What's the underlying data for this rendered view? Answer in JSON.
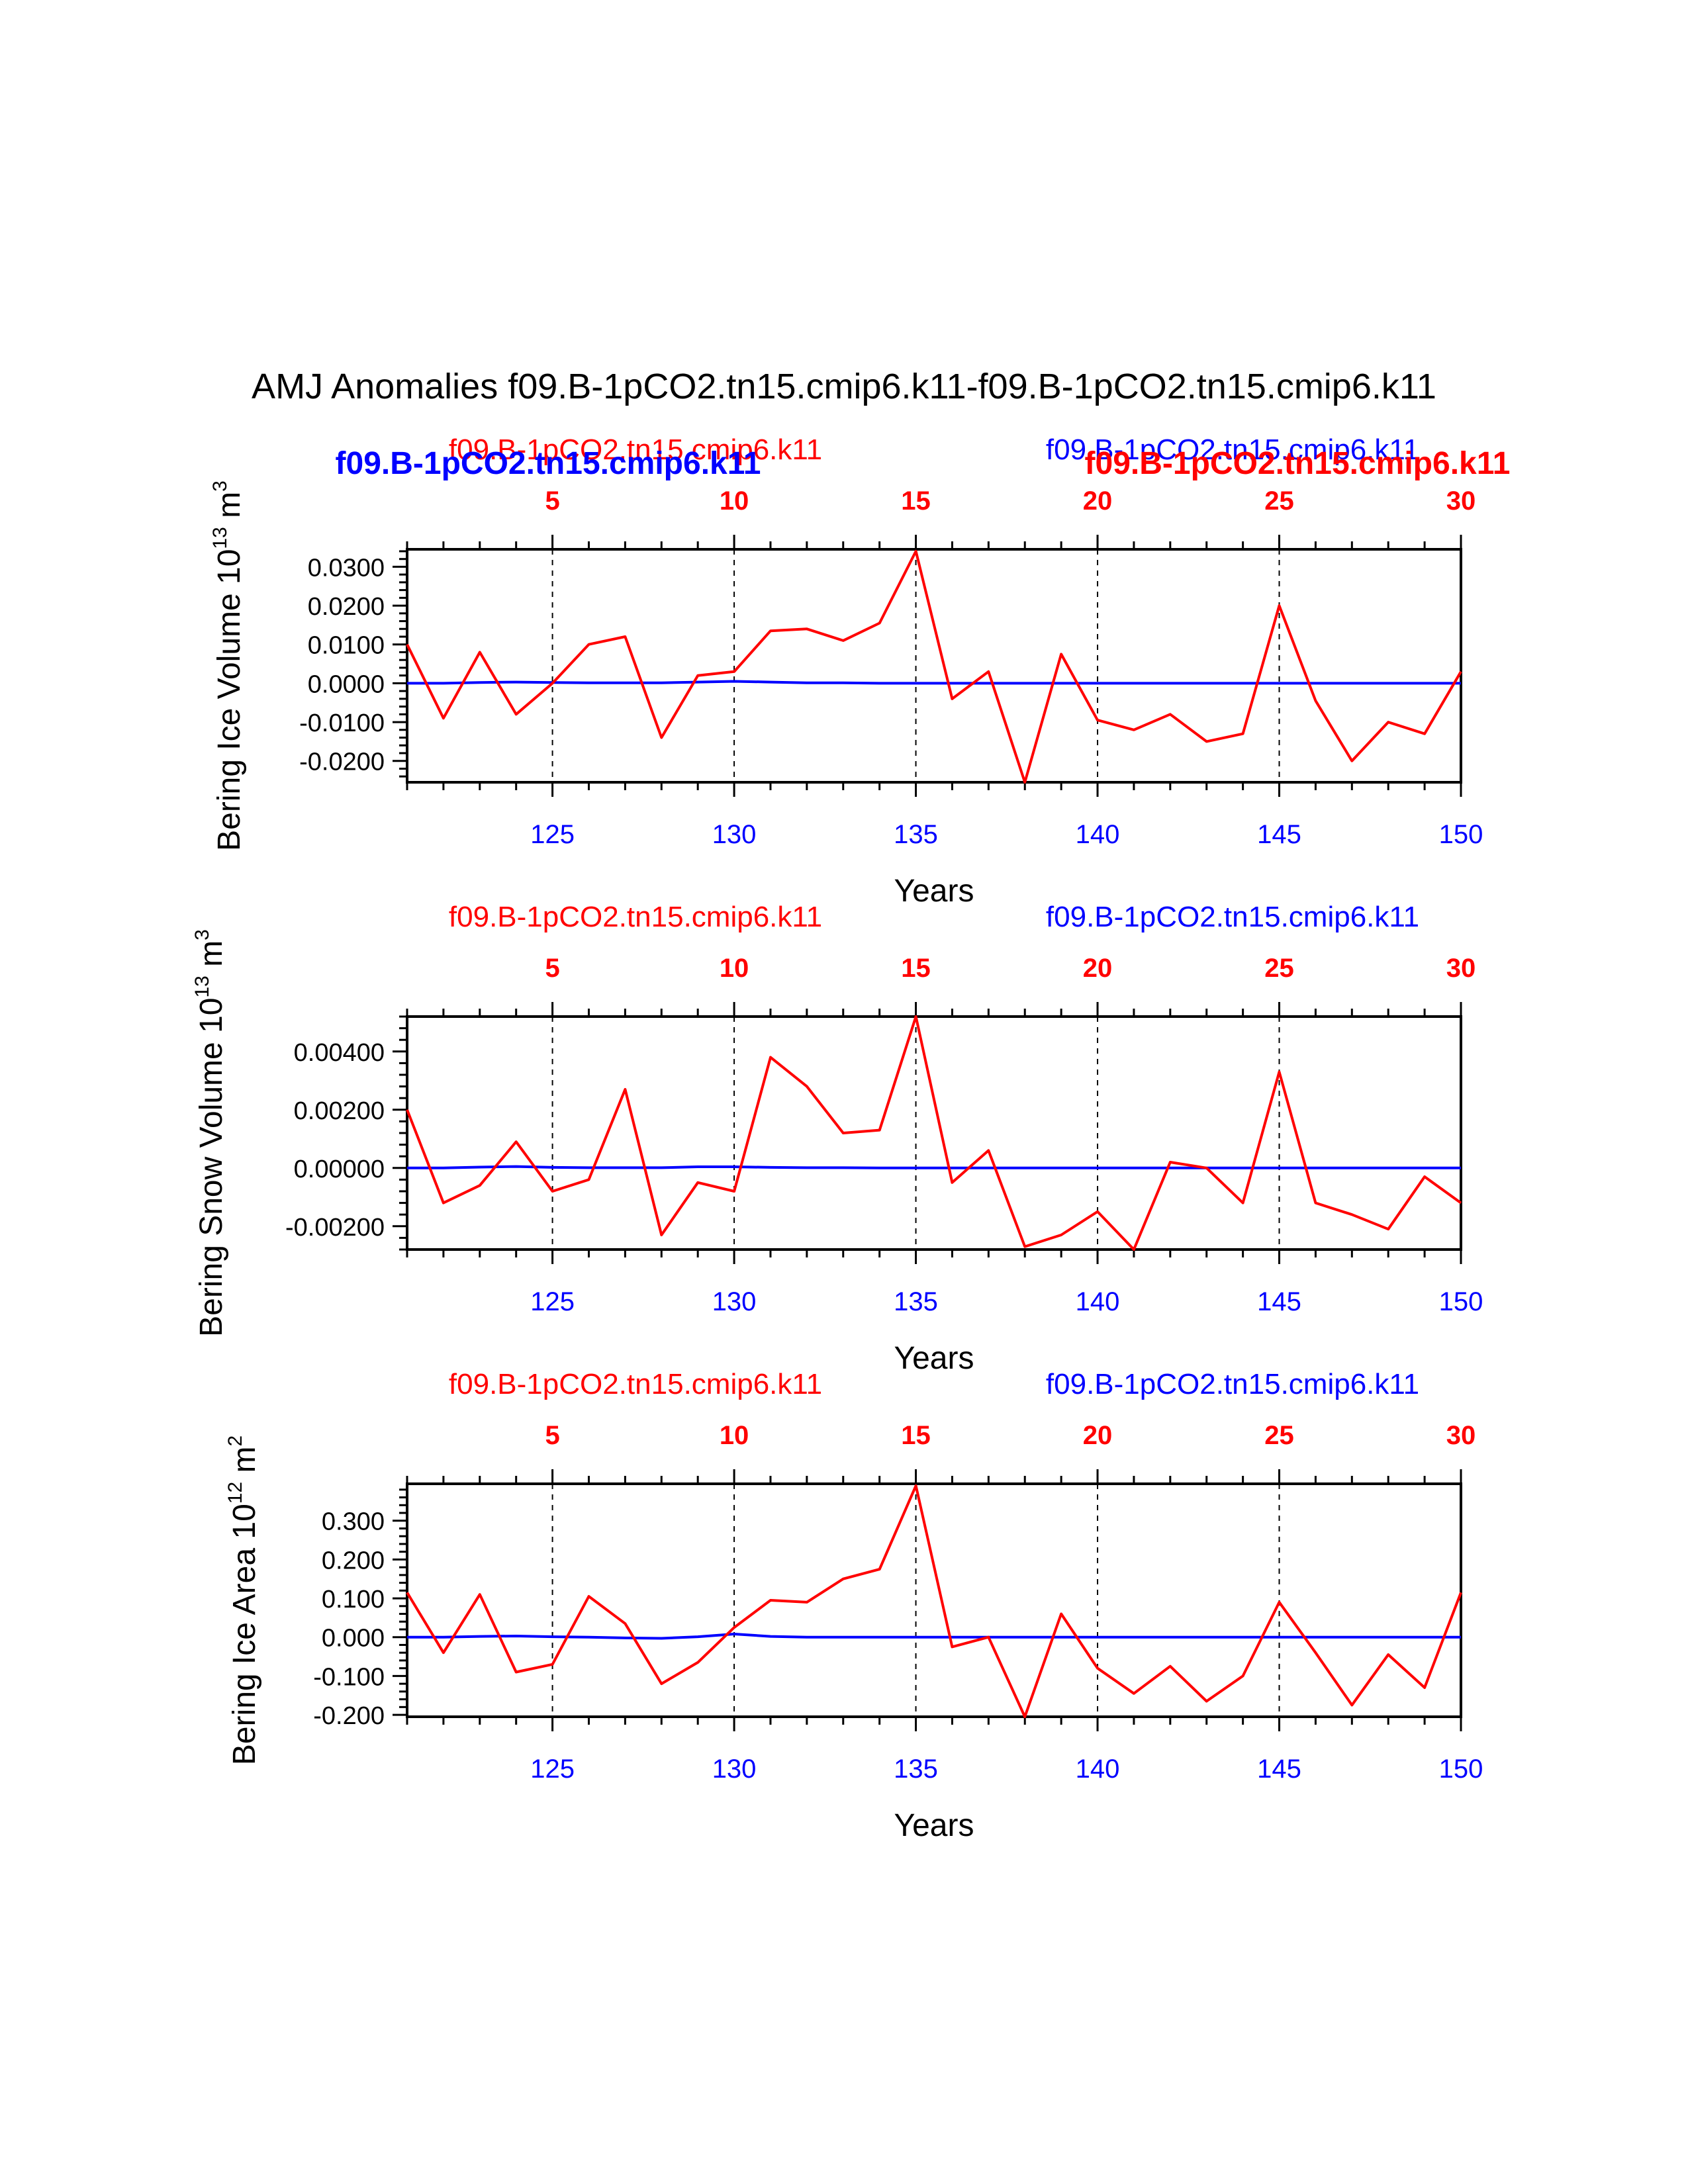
{
  "title": "AMJ Anomalies f09.B-1pCO2.tn15.cmip6.k11-f09.B-1pCO2.tn15.cmip6.k11",
  "colors": {
    "red": "#ff0000",
    "blue": "#0000ff",
    "axis": "#000000"
  },
  "chart_data": [
    {
      "type": "line",
      "ylabel": "Bering Ice Volume 10",
      "ylabel_exponent": "13",
      "ylabel_unit": " m",
      "ylabel_unit_exponent": "3",
      "xlabel": "Years",
      "legend": {
        "red_label": "f09.B-1pCO2.tn15.cmip6.k11",
        "blue_label": "f09.B-1pCO2.tn15.cmip6.k11",
        "blue_bold_label": "f09.B-1pCO2.tn15.cmip6.k11",
        "red_bold_label": "f09.B-1pCO2.tn15.cmip6.k11"
      },
      "xlim": [
        121,
        150
      ],
      "ylim": [
        -0.0255,
        0.0345
      ],
      "yticks": [
        -0.02,
        -0.01,
        0.0,
        0.01,
        0.02,
        0.03
      ],
      "ytick_labels": [
        "-0.0200",
        "-0.0100",
        "0.0000",
        "0.0100",
        "0.0200",
        "0.0300"
      ],
      "yminor_step": 0.002,
      "bottom_ticks": [
        125,
        130,
        135,
        140,
        145,
        150
      ],
      "bottom_tick_labels": [
        "125",
        "130",
        "135",
        "140",
        "145",
        "150"
      ],
      "top_tick_labels": [
        "5",
        "10",
        "15",
        "20",
        "25",
        "30"
      ],
      "grid": "dashed vertical every 5 years",
      "x": [
        121,
        122,
        123,
        124,
        125,
        126,
        127,
        128,
        129,
        130,
        131,
        132,
        133,
        134,
        135,
        136,
        137,
        138,
        139,
        140,
        141,
        142,
        143,
        144,
        145,
        146,
        147,
        148,
        149,
        150
      ],
      "series": [
        {
          "name": "f09.B-1pCO2.tn15.cmip6.k11",
          "color": "red",
          "values": [
            0.01,
            -0.009,
            0.008,
            -0.008,
            0.0,
            0.01,
            0.012,
            -0.014,
            0.002,
            0.003,
            0.0135,
            0.014,
            0.011,
            0.0155,
            0.034,
            -0.004,
            0.003,
            -0.0255,
            0.0075,
            -0.0095,
            -0.012,
            -0.008,
            -0.015,
            -0.013,
            0.02,
            -0.0045,
            -0.02,
            -0.01,
            -0.013,
            0.003
          ]
        },
        {
          "name": "f09.B-1pCO2.tn15.cmip6.k11",
          "color": "blue",
          "values": [
            0.0,
            0.0,
            0.0002,
            0.0003,
            0.0002,
            0.0001,
            0.0001,
            0.0001,
            0.0003,
            0.0005,
            0.0003,
            0.0001,
            0.0001,
            0.0,
            0.0,
            0.0,
            0.0,
            0.0,
            0.0,
            0.0,
            0.0,
            0.0,
            0.0,
            0.0,
            0.0,
            0.0,
            0.0,
            0.0,
            0.0,
            0.0
          ]
        }
      ]
    },
    {
      "type": "line",
      "ylabel": "Bering Snow Volume 10",
      "ylabel_exponent": "13",
      "ylabel_unit": " m",
      "ylabel_unit_exponent": "3",
      "xlabel": "Years",
      "legend": {
        "red_label": "f09.B-1pCO2.tn15.cmip6.k11",
        "blue_label": "f09.B-1pCO2.tn15.cmip6.k11"
      },
      "xlim": [
        121,
        150
      ],
      "ylim": [
        -0.0028,
        0.0052
      ],
      "yticks": [
        -0.002,
        0.0,
        0.002,
        0.004
      ],
      "ytick_labels": [
        "-0.00200",
        "0.00000",
        "0.00200",
        "0.00400"
      ],
      "yminor_step": 0.0004,
      "bottom_ticks": [
        125,
        130,
        135,
        140,
        145,
        150
      ],
      "bottom_tick_labels": [
        "125",
        "130",
        "135",
        "140",
        "145",
        "150"
      ],
      "top_tick_labels": [
        "5",
        "10",
        "15",
        "20",
        "25",
        "30"
      ],
      "grid": "dashed vertical every 5 years",
      "x": [
        121,
        122,
        123,
        124,
        125,
        126,
        127,
        128,
        129,
        130,
        131,
        132,
        133,
        134,
        135,
        136,
        137,
        138,
        139,
        140,
        141,
        142,
        143,
        144,
        145,
        146,
        147,
        148,
        149,
        150
      ],
      "series": [
        {
          "name": "f09.B-1pCO2.tn15.cmip6.k11",
          "color": "red",
          "values": [
            0.002,
            -0.0012,
            -0.0006,
            0.0009,
            -0.0008,
            -0.0004,
            0.0027,
            -0.0023,
            -0.0005,
            -0.0008,
            0.0038,
            0.0028,
            0.0012,
            0.0013,
            0.0052,
            -0.0005,
            0.0006,
            -0.0027,
            -0.0023,
            -0.0015,
            -0.0028,
            0.0002,
            0.0,
            -0.0012,
            0.0033,
            -0.0012,
            -0.0016,
            -0.0021,
            -0.0003,
            -0.0012
          ]
        },
        {
          "name": "f09.B-1pCO2.tn15.cmip6.k11",
          "color": "blue",
          "values": [
            0.0,
            0.0,
            3e-05,
            5e-05,
            2e-05,
            1e-05,
            1e-05,
            1e-05,
            4e-05,
            4e-05,
            2e-05,
            1e-05,
            1e-05,
            0.0,
            0.0,
            0.0,
            0.0,
            0.0,
            0.0,
            0.0,
            0.0,
            0.0,
            0.0,
            0.0,
            0.0,
            0.0,
            0.0,
            0.0,
            0.0,
            0.0
          ]
        }
      ]
    },
    {
      "type": "line",
      "ylabel": "Bering Ice Area 10",
      "ylabel_exponent": "12",
      "ylabel_unit": " m",
      "ylabel_unit_exponent": "2",
      "xlabel": "Years",
      "legend": {
        "red_label": "f09.B-1pCO2.tn15.cmip6.k11",
        "blue_label": "f09.B-1pCO2.tn15.cmip6.k11"
      },
      "xlim": [
        121,
        150
      ],
      "ylim": [
        -0.205,
        0.395
      ],
      "yticks": [
        -0.2,
        -0.1,
        0.0,
        0.1,
        0.2,
        0.3
      ],
      "ytick_labels": [
        "-0.200",
        "-0.100",
        "0.000",
        "0.100",
        "0.200",
        "0.300"
      ],
      "yminor_step": 0.02,
      "bottom_ticks": [
        125,
        130,
        135,
        140,
        145,
        150
      ],
      "bottom_tick_labels": [
        "125",
        "130",
        "135",
        "140",
        "145",
        "150"
      ],
      "top_tick_labels": [
        "5",
        "10",
        "15",
        "20",
        "25",
        "30"
      ],
      "grid": "dashed vertical every 5 years",
      "x": [
        121,
        122,
        123,
        124,
        125,
        126,
        127,
        128,
        129,
        130,
        131,
        132,
        133,
        134,
        135,
        136,
        137,
        138,
        139,
        140,
        141,
        142,
        143,
        144,
        145,
        146,
        147,
        148,
        149,
        150
      ],
      "series": [
        {
          "name": "f09.B-1pCO2.tn15.cmip6.k11",
          "color": "red",
          "values": [
            0.115,
            -0.04,
            0.11,
            -0.09,
            -0.07,
            0.105,
            0.035,
            -0.12,
            -0.065,
            0.025,
            0.095,
            0.09,
            0.15,
            0.175,
            0.39,
            -0.025,
            0.0,
            -0.205,
            0.06,
            -0.08,
            -0.145,
            -0.075,
            -0.165,
            -0.1,
            0.09,
            -0.04,
            -0.175,
            -0.045,
            -0.13,
            0.115
          ]
        },
        {
          "name": "f09.B-1pCO2.tn15.cmip6.k11",
          "color": "blue",
          "values": [
            0.0,
            0.0,
            0.002,
            0.003,
            0.001,
            0.0,
            -0.002,
            -0.003,
            0.001,
            0.008,
            0.002,
            0.0,
            0.0,
            0.0,
            0.0,
            0.0,
            0.0,
            0.0,
            0.0,
            0.0,
            0.0,
            0.0,
            0.0,
            0.0,
            0.0,
            0.0,
            0.0,
            0.0,
            0.0,
            0.0
          ]
        }
      ]
    }
  ]
}
